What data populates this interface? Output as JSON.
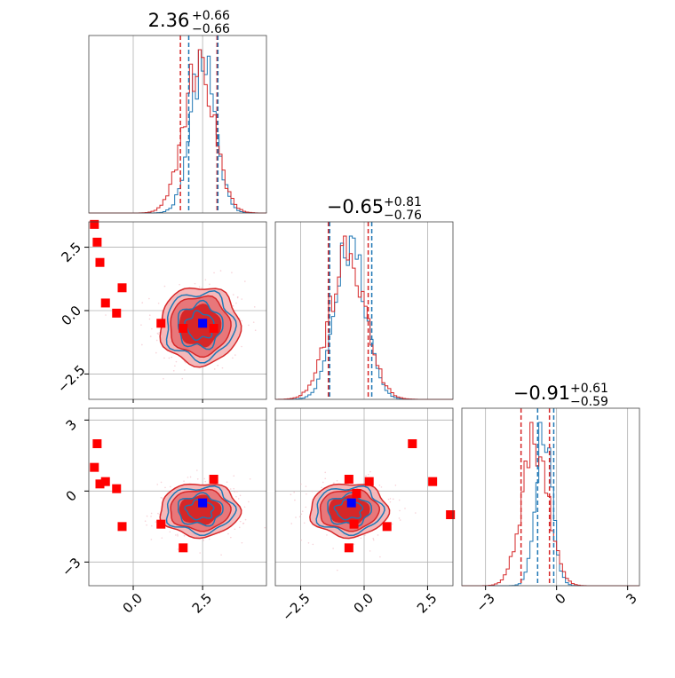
{
  "colors": {
    "red": "#d62728",
    "blue": "#1f77b4",
    "marker_red": "#ff0000",
    "marker_blue": "#0000ff",
    "grid": "#b0b0b0",
    "fill_dark": "#d62728",
    "fill_mid": "#e8777a",
    "fill_light": "#f5b8ba"
  },
  "chart_data": {
    "type": "corner",
    "grid": true,
    "params": [
      {
        "title_value": "2.36",
        "title_plus": "+0.66",
        "title_minus": "−0.66",
        "range": [
          -1.6,
          4.8
        ],
        "ticks": [
          0.0,
          2.5
        ],
        "tick_labels": [
          "0.0",
          "2.5"
        ]
      },
      {
        "title_value": "−0.65",
        "title_plus": "+0.81",
        "title_minus": "−0.76",
        "range": [
          -3.5,
          3.5
        ],
        "ticks": [
          -2.5,
          0.0,
          2.5
        ],
        "tick_labels": [
          "−2.5",
          "0.0",
          "2.5"
        ]
      },
      {
        "title_value": "−0.91",
        "title_plus": "+0.61",
        "title_minus": "−0.59",
        "range": [
          -4.0,
          3.5
        ],
        "ticks": [
          -3,
          0,
          3
        ],
        "tick_labels": [
          "−3",
          "0",
          "3"
        ]
      }
    ],
    "quantiles": {
      "red": [
        [
          1.7,
          3.02
        ],
        [
          -1.41,
          0.16
        ],
        [
          -1.5,
          -0.3
        ]
      ],
      "blue": [
        [
          2.0,
          3.05
        ],
        [
          -1.36,
          0.3
        ],
        [
          -0.8,
          -0.12
        ]
      ]
    },
    "markers": {
      "red": [
        [
          -1.4,
          3.4,
          1.0
        ],
        [
          -1.3,
          2.7,
          2.0
        ],
        [
          -1.2,
          1.9,
          0.3
        ],
        [
          -1.0,
          0.3,
          0.4
        ],
        [
          -0.6,
          -0.1,
          0.1
        ],
        [
          -0.4,
          0.9,
          -1.5
        ],
        [
          1.0,
          -0.5,
          -1.4
        ],
        [
          1.8,
          -0.7,
          -2.4
        ],
        [
          2.9,
          -0.7,
          0.5
        ],
        [
          2.5,
          -0.5,
          -0.5
        ]
      ],
      "blue": [
        [
          2.5,
          -0.5,
          -0.5
        ]
      ]
    },
    "pair_markers_extra": {
      "1_2_red": [
        [
          1.9,
          2.0
        ],
        [
          2.7,
          0.4
        ],
        [
          3.4,
          -1.0
        ],
        [
          -0.6,
          0.5
        ],
        [
          0.2,
          0.4
        ],
        [
          -0.6,
          -2.4
        ],
        [
          -0.4,
          -1.4
        ],
        [
          0.9,
          -1.5
        ],
        [
          -0.3,
          -0.1
        ]
      ]
    }
  }
}
